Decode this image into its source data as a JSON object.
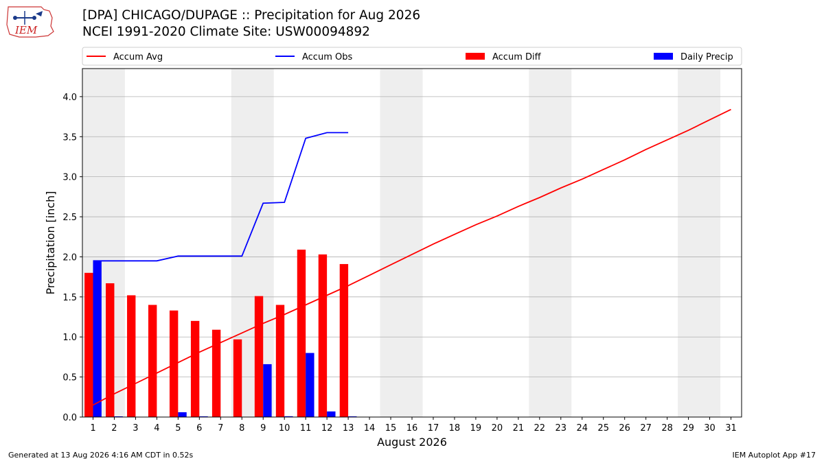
{
  "header": {
    "title_line1": "[DPA] CHICAGO/DUPAGE :: Precipitation for Aug 2026",
    "title_line2": "NCEI 1991-2020 Climate Site: USW00094892",
    "logo_text": "IEM"
  },
  "footer": {
    "left": "Generated at 13 Aug 2026 4:16 AM CDT in 0.52s",
    "right": "IEM Autoplot App #17"
  },
  "colors": {
    "accum_avg": "#ff0000",
    "accum_obs": "#0000ff",
    "accum_diff": "#ff0000",
    "daily_precip": "#0000ff",
    "weekend_band": "#eeeeee",
    "grid": "#b0b0b0"
  },
  "chart_data": {
    "type": "bar",
    "xlabel": "August 2026",
    "ylabel": "Precipitation [inch]",
    "xlim": [
      0.5,
      31.5
    ],
    "ylim": [
      0,
      4.35
    ],
    "x_ticks": [
      1,
      2,
      3,
      4,
      5,
      6,
      7,
      8,
      9,
      10,
      11,
      12,
      13,
      14,
      15,
      16,
      17,
      18,
      19,
      20,
      21,
      22,
      23,
      24,
      25,
      26,
      27,
      28,
      29,
      30,
      31
    ],
    "y_ticks": [
      0.0,
      0.5,
      1.0,
      1.5,
      2.0,
      2.5,
      3.0,
      3.5,
      4.0
    ],
    "y_tick_labels": [
      "0.0",
      "0.5",
      "1.0",
      "1.5",
      "2.0",
      "2.5",
      "3.0",
      "3.5",
      "4.0"
    ],
    "grid": "horizontal",
    "legend_position": "top",
    "weekend_bands": [
      [
        0.5,
        2.5
      ],
      [
        7.5,
        9.5
      ],
      [
        14.5,
        16.5
      ],
      [
        21.5,
        23.5
      ],
      [
        28.5,
        30.5
      ]
    ],
    "series": [
      {
        "name": "Accum Avg",
        "kind": "line",
        "x": [
          1,
          2,
          3,
          4,
          5,
          6,
          7,
          8,
          9,
          10,
          11,
          12,
          13,
          14,
          15,
          16,
          17,
          18,
          19,
          20,
          21,
          22,
          23,
          24,
          25,
          26,
          27,
          28,
          29,
          30,
          31
        ],
        "values": [
          0.15,
          0.29,
          0.42,
          0.55,
          0.68,
          0.81,
          0.93,
          1.05,
          1.17,
          1.28,
          1.4,
          1.52,
          1.64,
          1.77,
          1.9,
          2.03,
          2.16,
          2.28,
          2.4,
          2.51,
          2.63,
          2.74,
          2.86,
          2.97,
          3.09,
          3.21,
          3.34,
          3.46,
          3.58,
          3.71,
          3.84
        ]
      },
      {
        "name": "Accum Obs",
        "kind": "line",
        "x": [
          1,
          2,
          3,
          4,
          5,
          6,
          7,
          8,
          9,
          10,
          11,
          12,
          13
        ],
        "values": [
          1.95,
          1.95,
          1.95,
          1.95,
          2.01,
          2.01,
          2.01,
          2.01,
          2.67,
          2.68,
          3.48,
          3.55,
          3.55
        ]
      },
      {
        "name": "Accum Diff",
        "kind": "bar",
        "x": [
          1,
          2,
          3,
          4,
          5,
          6,
          7,
          8,
          9,
          10,
          11,
          12,
          13
        ],
        "values": [
          1.8,
          1.67,
          1.52,
          1.4,
          1.33,
          1.2,
          1.09,
          0.97,
          1.51,
          1.4,
          2.09,
          2.03,
          1.91
        ]
      },
      {
        "name": "Daily Precip",
        "kind": "bar",
        "x": [
          1,
          2,
          3,
          4,
          5,
          6,
          7,
          8,
          9,
          10,
          11,
          12,
          13
        ],
        "values": [
          1.95,
          0.005,
          0,
          0,
          0.06,
          0.005,
          0,
          0,
          0.66,
          0.01,
          0.8,
          0.07,
          0.005
        ]
      }
    ]
  }
}
